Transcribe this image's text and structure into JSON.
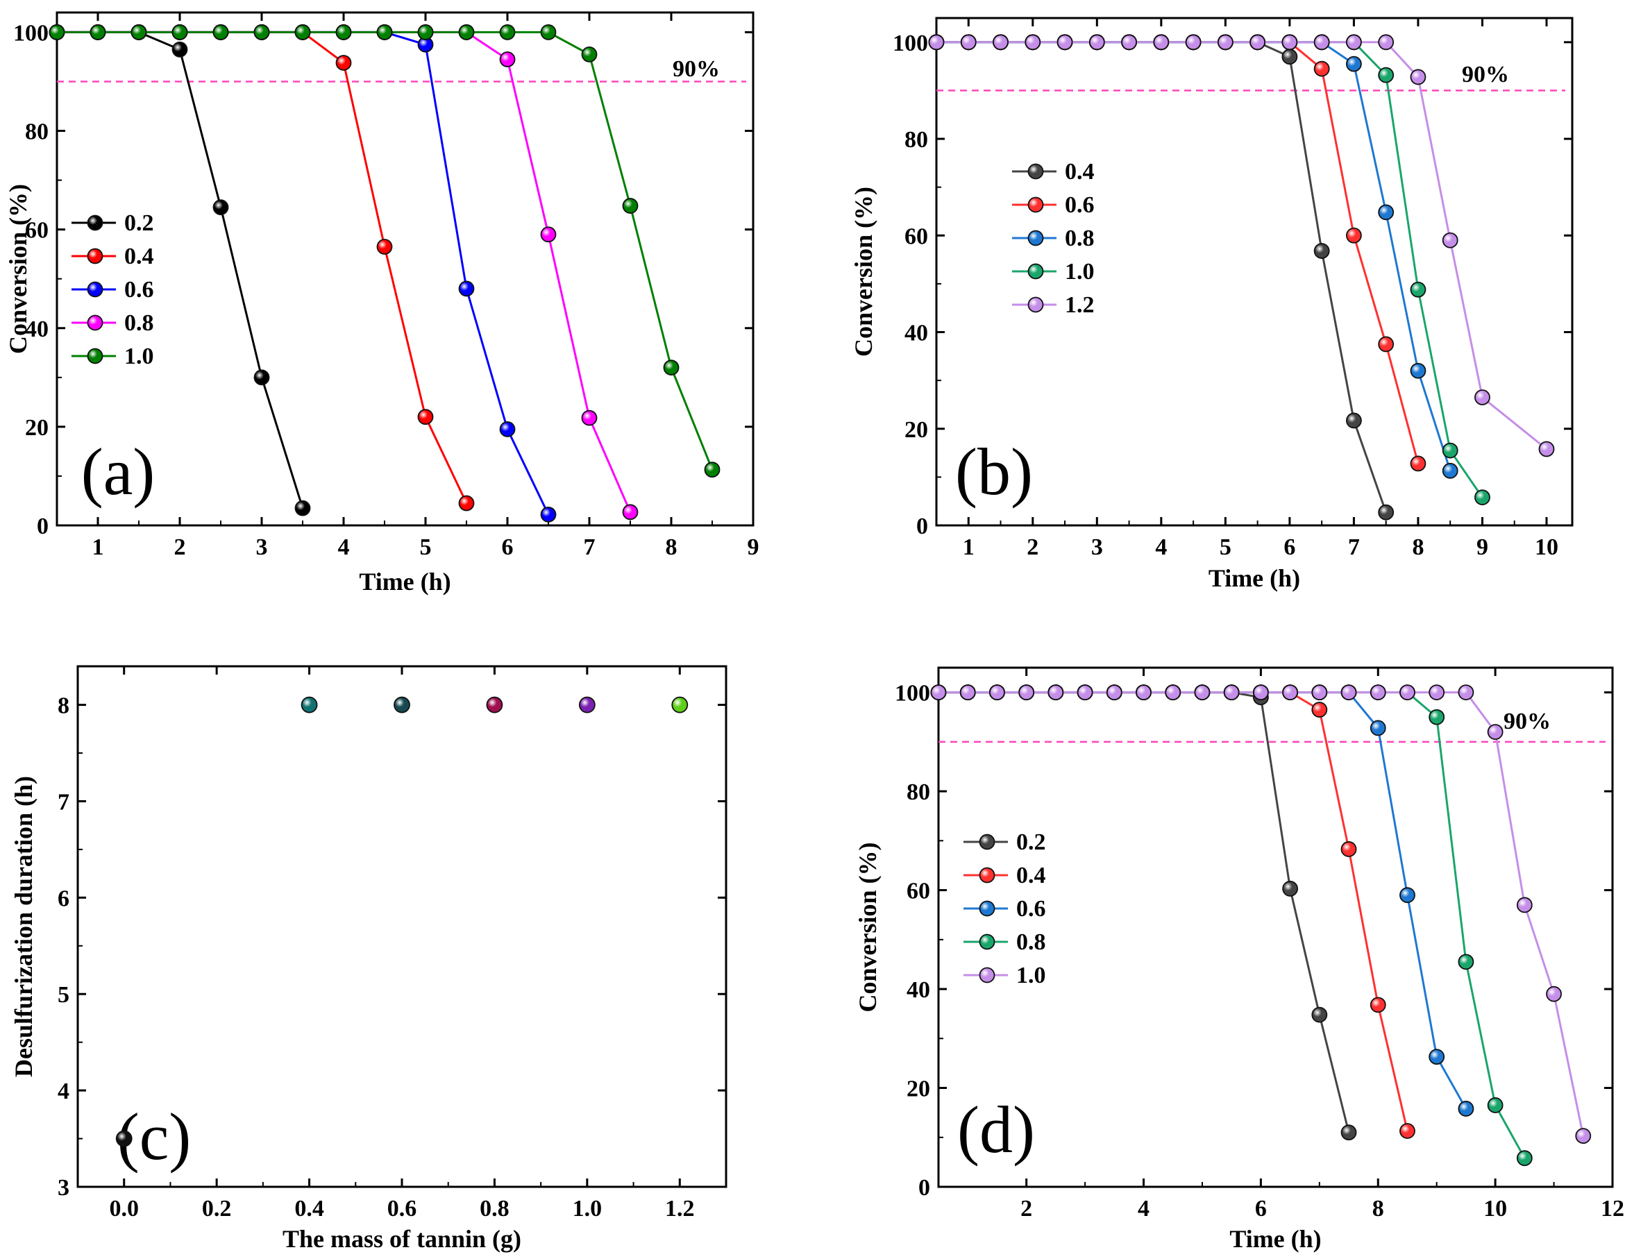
{
  "chart_data": [
    {
      "panel": "a",
      "type": "line",
      "title": "",
      "panel_label": "(a)",
      "xlabel": "Time (h)",
      "ylabel": "Conversion (%)",
      "xlim": [
        0.5,
        9
      ],
      "ylim": [
        0,
        104
      ],
      "xticks": [
        1,
        2,
        3,
        4,
        5,
        6,
        7,
        8,
        9
      ],
      "yticks": [
        0,
        20,
        40,
        60,
        80,
        100
      ],
      "reference_line": {
        "y": 90,
        "label": "90%",
        "color": "#ff44bb"
      },
      "legend_position": "middle-left",
      "series": [
        {
          "name": "0.2",
          "color": "#000000",
          "x": [
            0.5,
            1,
            1.5,
            2,
            2.5,
            3,
            3.5
          ],
          "y": [
            100,
            100,
            100,
            96.5,
            64.5,
            30,
            3.5
          ]
        },
        {
          "name": "0.4",
          "color": "#ff0000",
          "x": [
            0.5,
            1,
            1.5,
            2,
            2.5,
            3,
            3.5,
            4,
            4.5,
            5,
            5.5
          ],
          "y": [
            100,
            100,
            100,
            100,
            100,
            100,
            100,
            93.8,
            56.5,
            22,
            4.5
          ]
        },
        {
          "name": "0.6",
          "color": "#0000ff",
          "x": [
            0.5,
            1,
            1.5,
            2,
            2.5,
            3,
            3.5,
            4,
            4.5,
            5,
            5.5,
            6,
            6.5
          ],
          "y": [
            100,
            100,
            100,
            100,
            100,
            100,
            100,
            100,
            100,
            97.5,
            48,
            19.5,
            2.2
          ]
        },
        {
          "name": "0.8",
          "color": "#ff00ff",
          "x": [
            0.5,
            1,
            1.5,
            2,
            2.5,
            3,
            3.5,
            4,
            4.5,
            5,
            5.5,
            6,
            6.5,
            7,
            7.5
          ],
          "y": [
            100,
            100,
            100,
            100,
            100,
            100,
            100,
            100,
            100,
            100,
            100,
            94.5,
            59,
            21.8,
            2.7
          ]
        },
        {
          "name": "1.0",
          "color": "#008000",
          "x": [
            0.5,
            1,
            1.5,
            2,
            2.5,
            3,
            3.5,
            4,
            4.5,
            5,
            5.5,
            6,
            6.5,
            7,
            7.5,
            8,
            8.5
          ],
          "y": [
            100,
            100,
            100,
            100,
            100,
            100,
            100,
            100,
            100,
            100,
            100,
            100,
            100,
            95.5,
            64.8,
            32,
            11.3
          ]
        }
      ]
    },
    {
      "panel": "b",
      "type": "line",
      "title": "",
      "panel_label": "(b)",
      "xlabel": "Time (h)",
      "ylabel": "Conversion (%)",
      "xlim": [
        0.5,
        10.4
      ],
      "ylim": [
        0,
        105
      ],
      "xticks": [
        1,
        2,
        3,
        4,
        5,
        6,
        7,
        8,
        9,
        10
      ],
      "yticks": [
        0,
        20,
        40,
        60,
        80,
        100
      ],
      "reference_line": {
        "y": 90,
        "label": "90%",
        "color": "#ff44bb"
      },
      "legend_position": "middle-left",
      "series": [
        {
          "name": "0.4",
          "color": "#444444",
          "x": [
            0.5,
            1,
            1.5,
            2,
            2.5,
            3,
            3.5,
            4,
            4.5,
            5,
            5.5,
            6,
            6.5,
            7,
            7.5
          ],
          "y": [
            100,
            100,
            100,
            100,
            100,
            100,
            100,
            100,
            100,
            100,
            100,
            97,
            56.8,
            21.7,
            2.7
          ]
        },
        {
          "name": "0.6",
          "color": "#ff3030",
          "x": [
            0.5,
            1,
            1.5,
            2,
            2.5,
            3,
            3.5,
            4,
            4.5,
            5,
            5.5,
            6,
            6.5,
            7,
            7.5,
            8
          ],
          "y": [
            100,
            100,
            100,
            100,
            100,
            100,
            100,
            100,
            100,
            100,
            100,
            100,
            94.5,
            60,
            37.5,
            12.8
          ]
        },
        {
          "name": "0.8",
          "color": "#1e78d2",
          "x": [
            0.5,
            1,
            1.5,
            2,
            2.5,
            3,
            3.5,
            4,
            4.5,
            5,
            5.5,
            6,
            6.5,
            7,
            7.5,
            8,
            8.5
          ],
          "y": [
            100,
            100,
            100,
            100,
            100,
            100,
            100,
            100,
            100,
            100,
            100,
            100,
            100,
            95.5,
            64.8,
            32,
            11.3
          ]
        },
        {
          "name": "1.0",
          "color": "#1aa56b",
          "x": [
            0.5,
            1,
            1.5,
            2,
            2.5,
            3,
            3.5,
            4,
            4.5,
            5,
            5.5,
            6,
            6.5,
            7,
            7.5,
            8,
            8.5,
            9
          ],
          "y": [
            100,
            100,
            100,
            100,
            100,
            100,
            100,
            100,
            100,
            100,
            100,
            100,
            100,
            100,
            93.2,
            48.8,
            15.5,
            5.8
          ]
        },
        {
          "name": "1.2",
          "color": "#c58ee8",
          "x": [
            0.5,
            1,
            1.5,
            2,
            2.5,
            3,
            3.5,
            4,
            4.5,
            5,
            5.5,
            6,
            6.5,
            7,
            7.5,
            8,
            8.5,
            9,
            10
          ],
          "y": [
            100,
            100,
            100,
            100,
            100,
            100,
            100,
            100,
            100,
            100,
            100,
            100,
            100,
            100,
            100,
            92.8,
            59,
            26.5,
            15.8
          ]
        }
      ]
    },
    {
      "panel": "c",
      "type": "scatter",
      "title": "",
      "panel_label": "(c)",
      "xlabel": "The mass of tannin (g)",
      "ylabel": "Desulfurization duration (h)",
      "xlim": [
        -0.1,
        1.3
      ],
      "ylim": [
        3,
        8.4
      ],
      "xticks": [
        0.0,
        0.2,
        0.4,
        0.6,
        0.8,
        1.0,
        1.2
      ],
      "xtick_labels": [
        "0.0",
        "0.2",
        "0.4",
        "0.6",
        "0.8",
        "1.0",
        "1.2"
      ],
      "yticks": [
        3,
        4,
        5,
        6,
        7,
        8
      ],
      "points": [
        {
          "x": 0.0,
          "y": 3.5,
          "color": "#111111"
        },
        {
          "x": 0.4,
          "y": 8,
          "color": "#127272"
        },
        {
          "x": 0.6,
          "y": 8,
          "color": "#164a50"
        },
        {
          "x": 0.8,
          "y": 8,
          "color": "#a01050"
        },
        {
          "x": 1.0,
          "y": 8,
          "color": "#7a22b0"
        },
        {
          "x": 1.2,
          "y": 8,
          "color": "#5fcf18"
        }
      ]
    },
    {
      "panel": "d",
      "type": "line",
      "title": "",
      "panel_label": "(d)",
      "xlabel": "Time (h)",
      "ylabel": "Conversion (%)",
      "xlim": [
        0.5,
        12
      ],
      "ylim": [
        0,
        105
      ],
      "xticks": [
        2,
        4,
        6,
        8,
        10,
        12
      ],
      "yticks": [
        0,
        20,
        40,
        60,
        80,
        100
      ],
      "reference_line": {
        "y": 90,
        "label": "90%",
        "color": "#ff44bb"
      },
      "legend_position": "middle-left",
      "series": [
        {
          "name": "0.2",
          "color": "#444444",
          "x": [
            0.5,
            1,
            1.5,
            2,
            2.5,
            3,
            3.5,
            4,
            4.5,
            5,
            5.5,
            6,
            6.5,
            7,
            7.5
          ],
          "y": [
            100,
            100,
            100,
            100,
            100,
            100,
            100,
            100,
            100,
            100,
            100,
            99,
            60.3,
            34.8,
            11
          ]
        },
        {
          "name": "0.4",
          "color": "#ff3030",
          "x": [
            0.5,
            1,
            1.5,
            2,
            2.5,
            3,
            3.5,
            4,
            4.5,
            5,
            5.5,
            6,
            6.5,
            7,
            7.5,
            8,
            8.5
          ],
          "y": [
            100,
            100,
            100,
            100,
            100,
            100,
            100,
            100,
            100,
            100,
            100,
            100,
            100,
            96.5,
            68.3,
            36.8,
            11.3
          ]
        },
        {
          "name": "0.6",
          "color": "#1e78d2",
          "x": [
            0.5,
            1,
            1.5,
            2,
            2.5,
            3,
            3.5,
            4,
            4.5,
            5,
            5.5,
            6,
            6.5,
            7,
            7.5,
            8,
            8.5,
            9,
            9.5
          ],
          "y": [
            100,
            100,
            100,
            100,
            100,
            100,
            100,
            100,
            100,
            100,
            100,
            100,
            100,
            100,
            100,
            92.8,
            59,
            26.3,
            15.8
          ]
        },
        {
          "name": "0.8",
          "color": "#1aa56b",
          "x": [
            0.5,
            1,
            1.5,
            2,
            2.5,
            3,
            3.5,
            4,
            4.5,
            5,
            5.5,
            6,
            6.5,
            7,
            7.5,
            8,
            8.5,
            9,
            9.5,
            10,
            10.5
          ],
          "y": [
            100,
            100,
            100,
            100,
            100,
            100,
            100,
            100,
            100,
            100,
            100,
            100,
            100,
            100,
            100,
            100,
            100,
            95,
            45.5,
            16.5,
            5.8
          ]
        },
        {
          "name": "1.0",
          "color": "#c58ee8",
          "x": [
            0.5,
            1,
            1.5,
            2,
            2.5,
            3,
            3.5,
            4,
            4.5,
            5,
            5.5,
            6,
            6.5,
            7,
            7.5,
            8,
            8.5,
            9,
            9.5,
            10,
            10.5,
            11,
            11.5
          ],
          "y": [
            100,
            100,
            100,
            100,
            100,
            100,
            100,
            100,
            100,
            100,
            100,
            100,
            100,
            100,
            100,
            100,
            100,
            100,
            100,
            92,
            57,
            39,
            10.3
          ]
        }
      ]
    }
  ]
}
